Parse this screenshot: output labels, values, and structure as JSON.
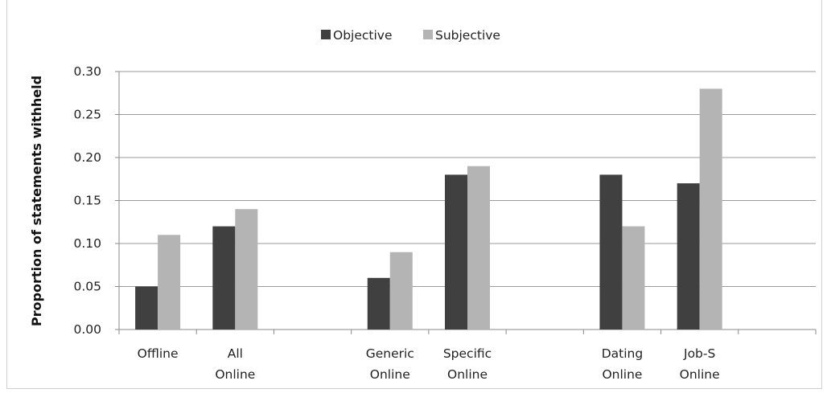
{
  "chart_data": {
    "type": "bar",
    "ylabel": "Proportion of statements withheld",
    "ylim": [
      0,
      0.3
    ],
    "yticks": [
      "0.00",
      "0.05",
      "0.10",
      "0.15",
      "0.20",
      "0.25",
      "0.30"
    ],
    "legend_position": "top-center",
    "categories": [
      [
        "Offline"
      ],
      [
        "All",
        "Online"
      ],
      [],
      [
        "Generic",
        "Online"
      ],
      [
        "Specific",
        "Online"
      ],
      [],
      [
        "Dating",
        "Online"
      ],
      [
        "Job-S",
        "Online"
      ],
      []
    ],
    "series": [
      {
        "name": "Objective",
        "color": "#404040",
        "values": [
          0.05,
          0.12,
          null,
          0.06,
          0.18,
          null,
          0.18,
          0.17,
          null
        ]
      },
      {
        "name": "Subjective",
        "color": "#b4b4b4",
        "values": [
          0.11,
          0.14,
          null,
          0.09,
          0.19,
          null,
          0.12,
          0.28,
          null
        ]
      }
    ]
  }
}
